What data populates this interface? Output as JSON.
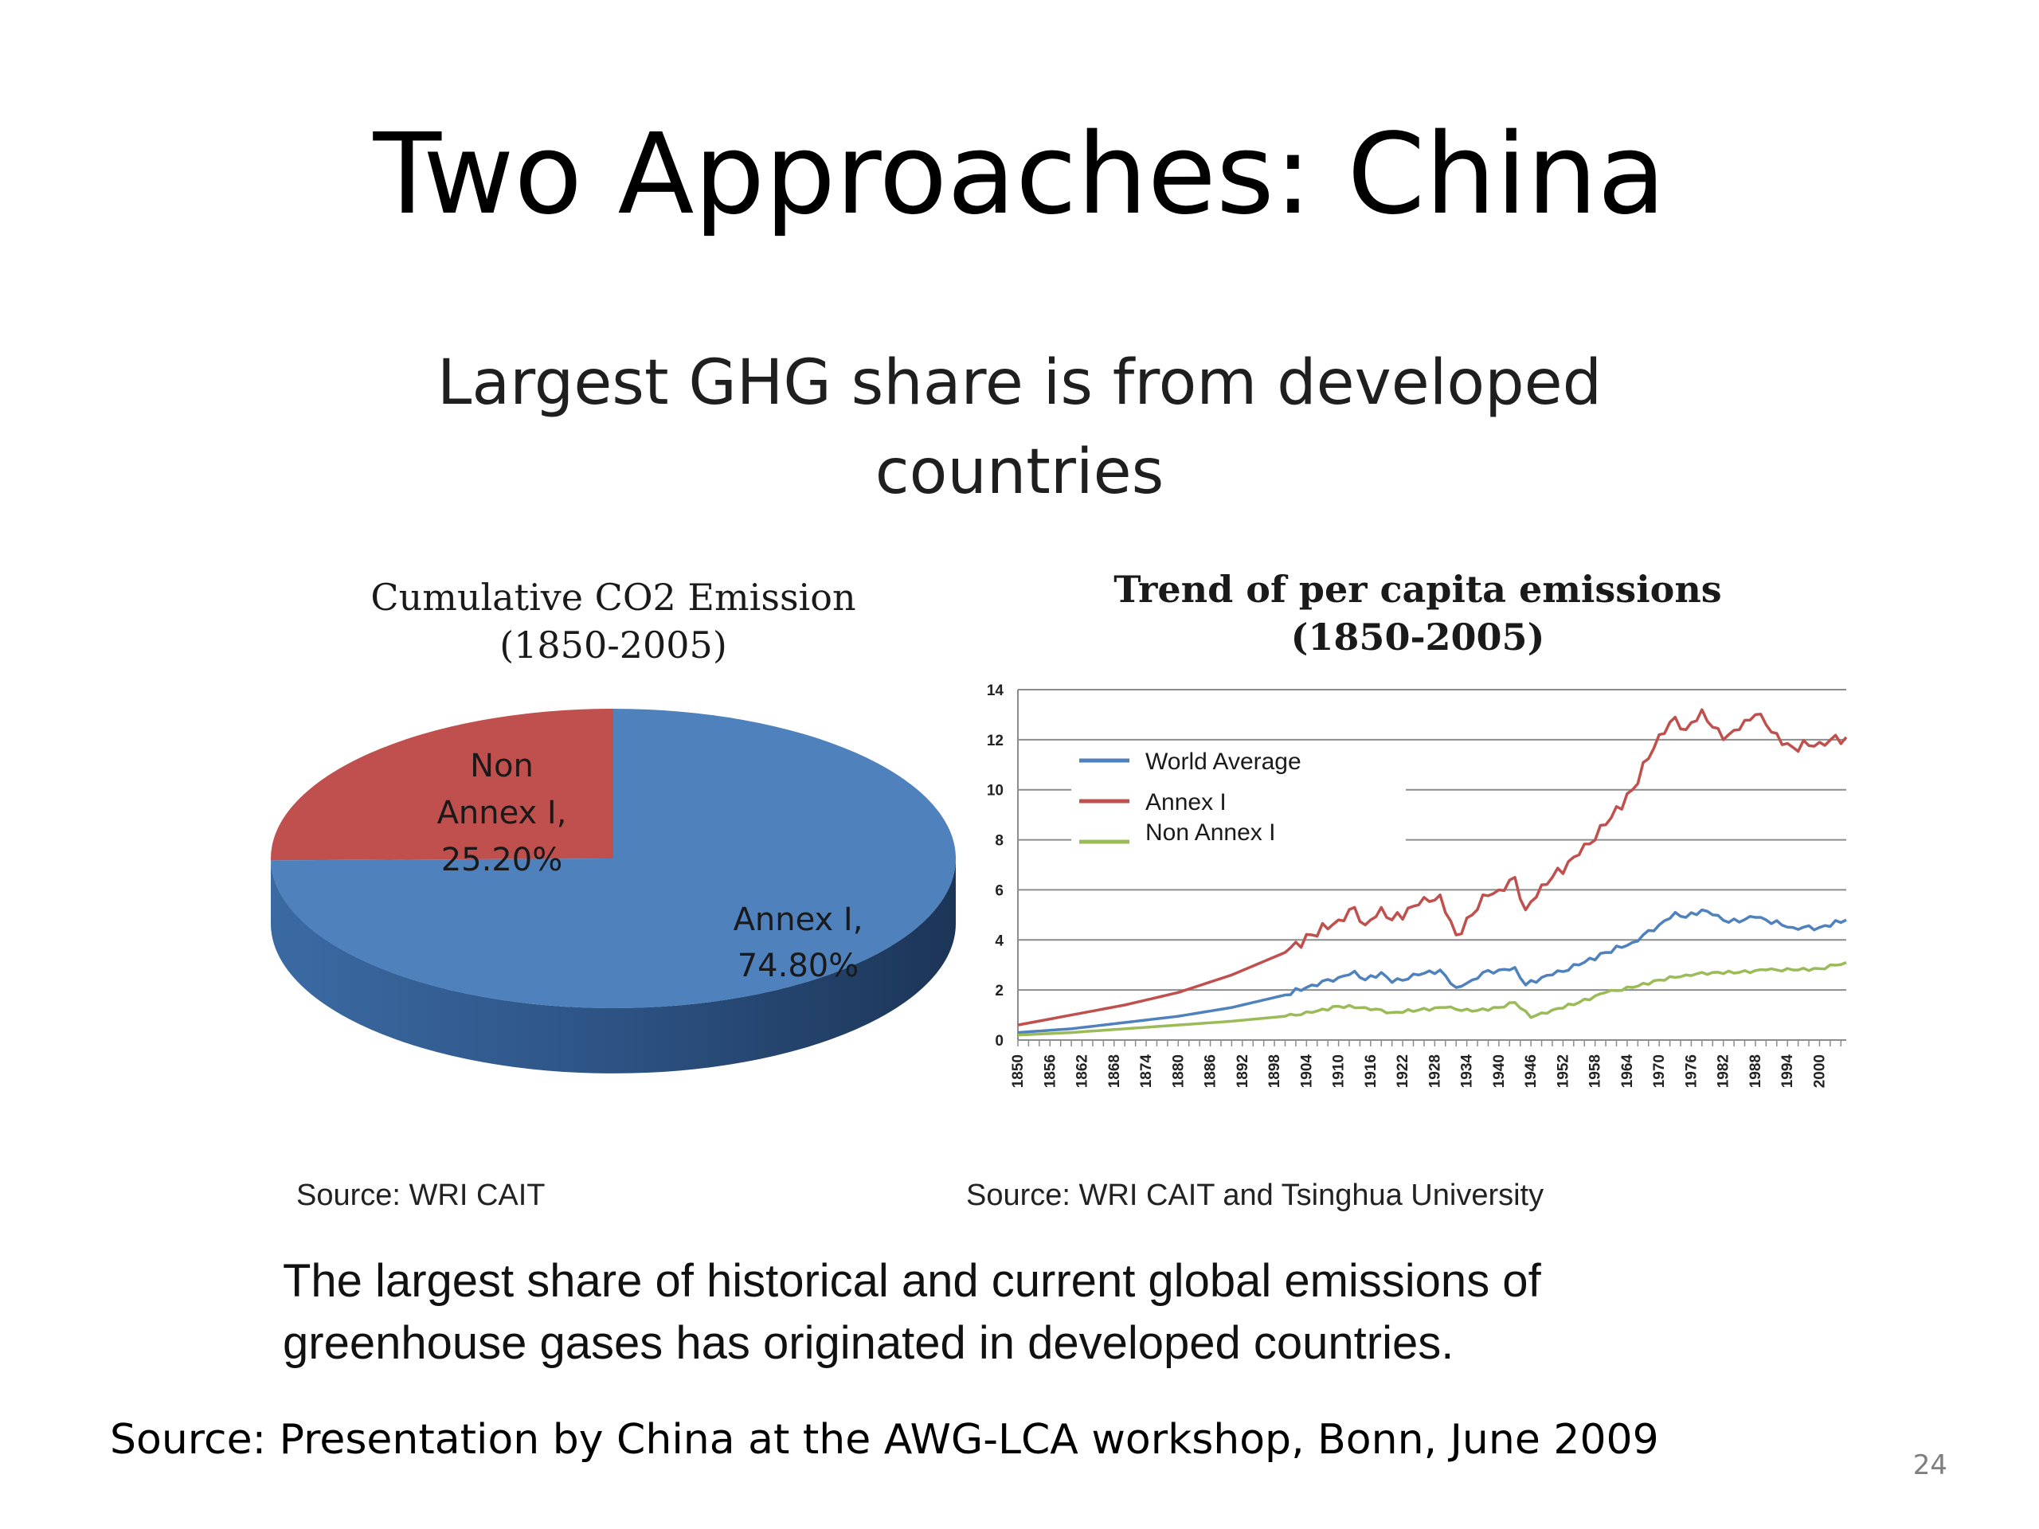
{
  "slide": {
    "title": "Two Approaches: China",
    "subtitle_line1": "Largest GHG share is from developed",
    "subtitle_line2": "countries",
    "conclusion_line1": "The largest share of historical and current global emissions of",
    "conclusion_line2": "greenhouse gases has originated in developed countries.",
    "source": "Source: Presentation by China at the AWG-LCA  workshop, Bonn, June 2009",
    "page_number": "24"
  },
  "chart_data": [
    {
      "type": "pie",
      "title": "Cumulative CO2 Emission",
      "subtitle": "(1850-2005)",
      "source": "Source: WRI CAIT",
      "slices": [
        {
          "label_line1": "Annex I,",
          "label_line2": "",
          "value_text": "74.80%",
          "value": 74.8,
          "color": "#4f81bd"
        },
        {
          "label_line1": "Non",
          "label_line2": "Annex I,",
          "value_text": "25.20%",
          "value": 25.2,
          "color": "#c0504d"
        }
      ]
    },
    {
      "type": "line",
      "title": "Trend of per capita emissions",
      "subtitle": "(1850-2005)",
      "source": "Source: WRI CAIT and Tsinghua University",
      "ylim": [
        0,
        14
      ],
      "yticks": [
        0,
        2,
        4,
        6,
        8,
        10,
        12,
        14
      ],
      "xlim": [
        1850,
        2005
      ],
      "xticks": [
        1850,
        1856,
        1862,
        1868,
        1874,
        1880,
        1886,
        1892,
        1898,
        1904,
        1910,
        1916,
        1922,
        1928,
        1934,
        1940,
        1946,
        1952,
        1958,
        1964,
        1970,
        1976,
        1982,
        1988,
        1994,
        2000
      ],
      "grid": true,
      "legend": "upper-left",
      "series": [
        {
          "name": "World Average",
          "color": "#4f81bd",
          "points": [
            [
              1850,
              0.3
            ],
            [
              1860,
              0.45
            ],
            [
              1870,
              0.7
            ],
            [
              1880,
              0.95
            ],
            [
              1890,
              1.3
            ],
            [
              1900,
              1.8
            ],
            [
              1905,
              2.2
            ],
            [
              1910,
              2.5
            ],
            [
              1913,
              2.75
            ],
            [
              1915,
              2.4
            ],
            [
              1918,
              2.7
            ],
            [
              1920,
              2.3
            ],
            [
              1925,
              2.6
            ],
            [
              1929,
              2.8
            ],
            [
              1932,
              2.1
            ],
            [
              1935,
              2.4
            ],
            [
              1937,
              2.7
            ],
            [
              1940,
              2.8
            ],
            [
              1943,
              2.9
            ],
            [
              1945,
              2.2
            ],
            [
              1948,
              2.5
            ],
            [
              1950,
              2.6
            ],
            [
              1955,
              3.0
            ],
            [
              1960,
              3.5
            ],
            [
              1965,
              3.9
            ],
            [
              1970,
              4.6
            ],
            [
              1973,
              5.1
            ],
            [
              1975,
              4.9
            ],
            [
              1978,
              5.2
            ],
            [
              1980,
              5.0
            ],
            [
              1983,
              4.7
            ],
            [
              1988,
              4.9
            ],
            [
              1990,
              4.8
            ],
            [
              1995,
              4.5
            ],
            [
              2000,
              4.5
            ],
            [
              2005,
              4.8
            ]
          ]
        },
        {
          "name": "Annex I",
          "color": "#c0504d",
          "points": [
            [
              1850,
              0.6
            ],
            [
              1860,
              1.0
            ],
            [
              1870,
              1.4
            ],
            [
              1880,
              1.9
            ],
            [
              1890,
              2.6
            ],
            [
              1900,
              3.5
            ],
            [
              1905,
              4.2
            ],
            [
              1910,
              4.8
            ],
            [
              1913,
              5.3
            ],
            [
              1915,
              4.6
            ],
            [
              1918,
              5.3
            ],
            [
              1920,
              4.8
            ],
            [
              1925,
              5.4
            ],
            [
              1929,
              5.8
            ],
            [
              1932,
              4.2
            ],
            [
              1935,
              5.0
            ],
            [
              1937,
              5.8
            ],
            [
              1940,
              6.0
            ],
            [
              1943,
              6.5
            ],
            [
              1945,
              5.2
            ],
            [
              1948,
              6.2
            ],
            [
              1950,
              6.5
            ],
            [
              1955,
              7.4
            ],
            [
              1960,
              8.6
            ],
            [
              1965,
              10.0
            ],
            [
              1970,
              12.2
            ],
            [
              1973,
              12.9
            ],
            [
              1975,
              12.4
            ],
            [
              1978,
              13.2
            ],
            [
              1980,
              12.5
            ],
            [
              1982,
              12.0
            ],
            [
              1985,
              12.4
            ],
            [
              1988,
              13.0
            ],
            [
              1990,
              12.6
            ],
            [
              1993,
              11.8
            ],
            [
              1995,
              11.7
            ],
            [
              2000,
              11.9
            ],
            [
              2005,
              12.1
            ]
          ]
        },
        {
          "name": "Non Annex I",
          "color": "#9bbb59",
          "points": [
            [
              1850,
              0.2
            ],
            [
              1860,
              0.3
            ],
            [
              1870,
              0.45
            ],
            [
              1880,
              0.6
            ],
            [
              1890,
              0.75
            ],
            [
              1900,
              0.95
            ],
            [
              1905,
              1.1
            ],
            [
              1910,
              1.35
            ],
            [
              1915,
              1.3
            ],
            [
              1920,
              1.1
            ],
            [
              1925,
              1.2
            ],
            [
              1930,
              1.3
            ],
            [
              1935,
              1.15
            ],
            [
              1940,
              1.3
            ],
            [
              1943,
              1.5
            ],
            [
              1946,
              0.9
            ],
            [
              1950,
              1.2
            ],
            [
              1955,
              1.5
            ],
            [
              1960,
              1.9
            ],
            [
              1965,
              2.1
            ],
            [
              1970,
              2.4
            ],
            [
              1975,
              2.6
            ],
            [
              1980,
              2.7
            ],
            [
              1985,
              2.7
            ],
            [
              1990,
              2.8
            ],
            [
              1995,
              2.8
            ],
            [
              2000,
              2.85
            ],
            [
              2005,
              3.1
            ]
          ]
        }
      ]
    }
  ]
}
